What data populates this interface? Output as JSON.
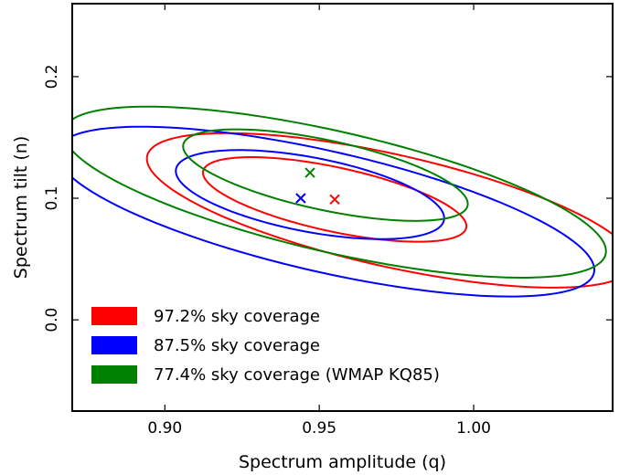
{
  "chart_data": {
    "type": "scatter",
    "title": "",
    "xlabel": "Spectrum amplitude (q)",
    "ylabel": "Spectrum tilt (n)",
    "xlim": [
      0.87,
      1.045
    ],
    "ylim": [
      -0.075,
      0.26
    ],
    "xticks": [
      {
        "value": 0.9,
        "label": "0.90"
      },
      {
        "value": 0.95,
        "label": "0.95"
      },
      {
        "value": 1.0,
        "label": "1.00"
      }
    ],
    "yticks": [
      {
        "value": 0.0,
        "label": "0.0"
      },
      {
        "value": 0.1,
        "label": "0.1"
      },
      {
        "value": 0.2,
        "label": "0.2"
      }
    ],
    "grid": false,
    "legend_position": "bottom-left",
    "series": [
      {
        "name": "97.2% sky coverage",
        "color": "#ff0000",
        "best_fit": {
          "x": 0.955,
          "y": 0.099
        },
        "contours": [
          {
            "level": "inner",
            "center": [
              0.955,
              0.099
            ],
            "semi_major": 0.05,
            "semi_minor": 0.023,
            "angle_deg": -36
          },
          {
            "level": "outer",
            "center": [
              0.973,
              0.09
            ],
            "semi_major": 0.093,
            "semi_minor": 0.04,
            "angle_deg": -36
          }
        ]
      },
      {
        "name": "87.5% sky coverage",
        "color": "#0000ff",
        "best_fit": {
          "x": 0.944,
          "y": 0.1
        },
        "contours": [
          {
            "level": "inner",
            "center": [
              0.947,
              0.103
            ],
            "semi_major": 0.05,
            "semi_minor": 0.027,
            "angle_deg": -36
          },
          {
            "level": "outer",
            "center": [
              0.952,
              0.089
            ],
            "semi_major": 0.103,
            "semi_minor": 0.043,
            "angle_deg": -36
          }
        ]
      },
      {
        "name": "77.4% sky coverage (WMAP KQ85)",
        "color": "#008000",
        "best_fit": {
          "x": 0.947,
          "y": 0.121
        },
        "contours": [
          {
            "level": "inner",
            "center": [
              0.952,
              0.119
            ],
            "semi_major": 0.054,
            "semi_minor": 0.025,
            "angle_deg": -36
          },
          {
            "level": "outer",
            "center": [
              0.955,
              0.105
            ],
            "semi_major": 0.104,
            "semi_minor": 0.043,
            "angle_deg": -36
          }
        ]
      }
    ]
  }
}
